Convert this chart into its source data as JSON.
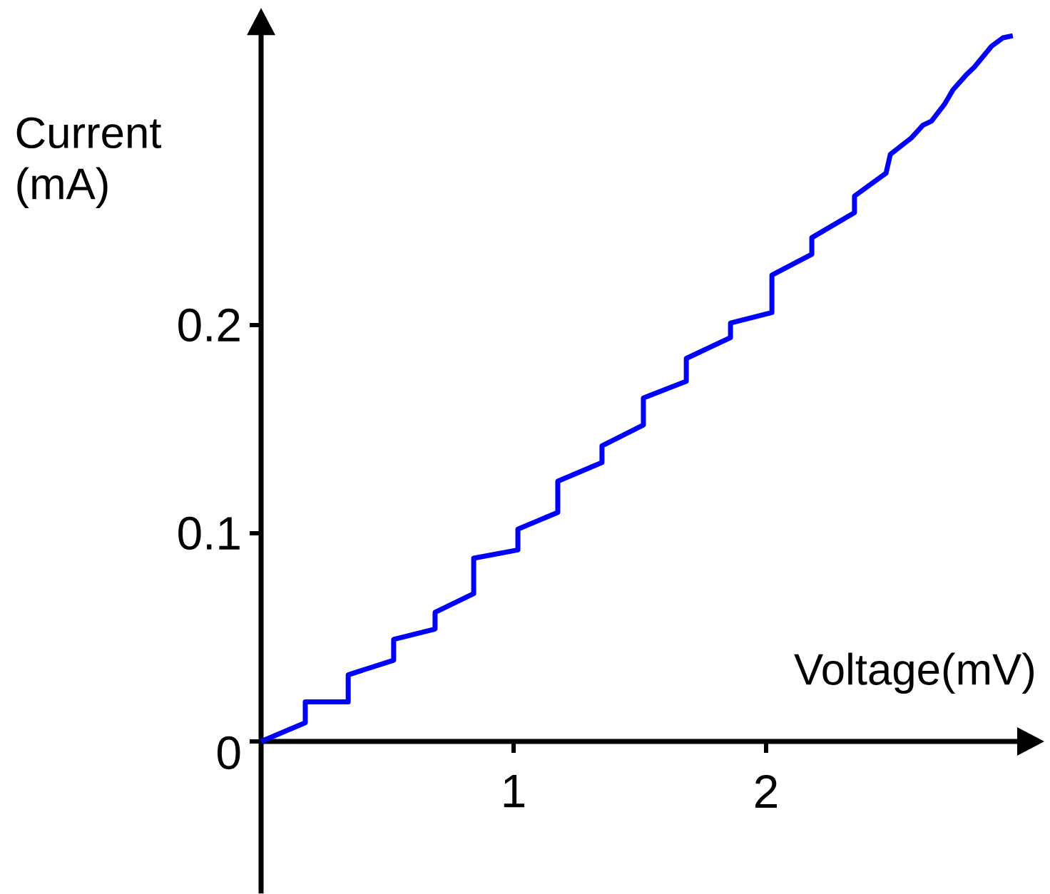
{
  "chart_data": {
    "type": "line",
    "xlabel": "Voltage(mV)",
    "ylabel": "Current (mA)",
    "x": [
      0,
      0.175,
      0.175,
      0.345,
      0.345,
      0.525,
      0.525,
      0.689,
      0.689,
      0.842,
      0.842,
      1.017,
      1.017,
      1.175,
      1.175,
      1.35,
      1.35,
      1.514,
      1.514,
      1.684,
      1.684,
      1.859,
      1.859,
      2.023,
      2.023,
      2.181,
      2.181,
      2.35,
      2.35,
      2.475,
      2.492,
      2.576,
      2.621,
      2.655,
      2.706,
      2.74,
      2.791,
      2.825,
      2.893,
      2.938,
      2.977
    ],
    "values": [
      0,
      0.009,
      0.019,
      0.019,
      0.032,
      0.039,
      0.049,
      0.054,
      0.062,
      0.071,
      0.088,
      0.092,
      0.102,
      0.11,
      0.125,
      0.134,
      0.142,
      0.152,
      0.165,
      0.173,
      0.184,
      0.194,
      0.201,
      0.206,
      0.224,
      0.234,
      0.242,
      0.254,
      0.262,
      0.273,
      0.282,
      0.29,
      0.296,
      0.298,
      0.306,
      0.313,
      0.32,
      0.324,
      0.334,
      0.338,
      0.339
    ],
    "color": "#0000ff",
    "line_style": "solid",
    "marker": "none",
    "xlim": [
      0,
      3.0
    ],
    "ylim": [
      -0.073,
      0.34
    ],
    "xticks": [
      1,
      2
    ],
    "yticks": [
      0,
      0.1,
      0.2
    ]
  }
}
